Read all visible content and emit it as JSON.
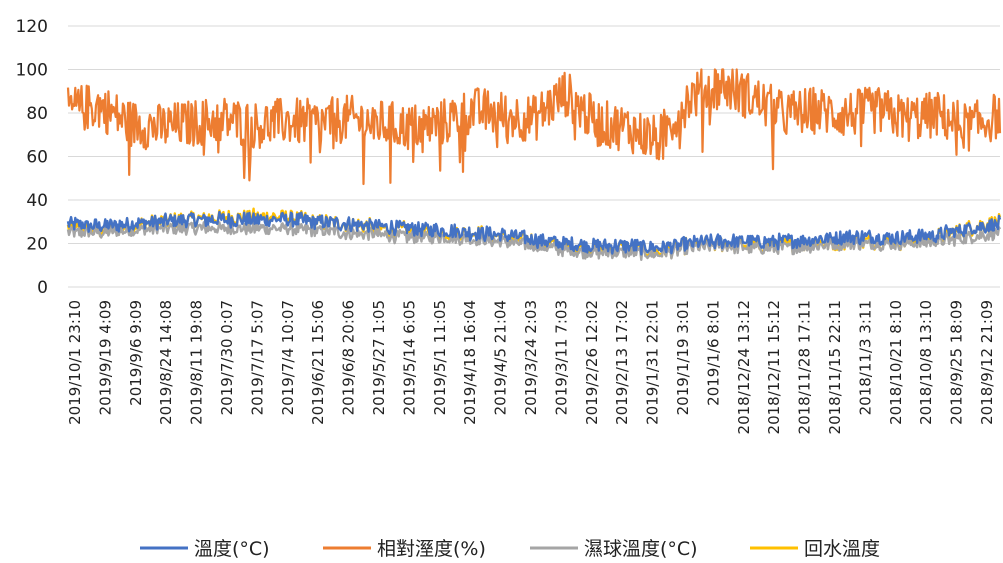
{
  "chart_data": {
    "type": "line",
    "title": "",
    "xlabel": "",
    "ylabel": "",
    "ylim": [
      0,
      120
    ],
    "yticks": [
      0,
      20,
      40,
      60,
      80,
      100,
      120
    ],
    "grid": "horizontal",
    "legend_position": "bottom",
    "x_order": "descending time (newest at left)",
    "x_tick_labels": [
      "2019/10/1 23:10",
      "2019/9/19 4:09",
      "2019/9/6 9:09",
      "2019/8/24 14:08",
      "2019/8/11 19:08",
      "2019/7/30 0:07",
      "2019/7/17 5:07",
      "2019/7/4 10:07",
      "2019/6/21 15:06",
      "2019/6/8 20:06",
      "2019/5/27 1:05",
      "2019/5/14 6:05",
      "2019/5/1 11:05",
      "2019/4/18 16:04",
      "2019/4/5 21:04",
      "2019/3/24 2:03",
      "2019/3/11 7:03",
      "2019/2/26 12:02",
      "2019/2/13 17:02",
      "2019/1/31 22:01",
      "2019/1/19 3:01",
      "2019/1/6 8:01",
      "2018/12/24 13:12",
      "2018/12/11 15:12",
      "2018/11/28 17:11",
      "2018/11/15 22:11",
      "2018/11/3 3:11",
      "2018/10/21 8:10",
      "2018/10/8 13:10",
      "2018/9/25 18:09",
      "2018/9/12 21:09"
    ],
    "series": [
      {
        "name": "溫度(°C)",
        "color": "#4472C4",
        "values": [
          29,
          28,
          29,
          30,
          31,
          31,
          31,
          31,
          30,
          29,
          28,
          27,
          26,
          25,
          24,
          22,
          20,
          19,
          19,
          18,
          20,
          21,
          21,
          21,
          22,
          23,
          23,
          23,
          24,
          27,
          29
        ]
      },
      {
        "name": "相對溼度(%)",
        "color": "#ED7D31",
        "values": [
          78,
          80,
          72,
          70,
          72,
          74,
          71,
          73,
          72,
          74,
          72,
          70,
          72,
          78,
          76,
          74,
          86,
          72,
          70,
          64,
          84,
          90,
          84,
          76,
          78,
          76,
          78,
          74,
          76,
          70,
          76
        ]
      },
      {
        "name": "濕球溫度(°C)",
        "color": "#A5A5A5",
        "values": [
          25,
          25,
          26,
          27,
          27,
          27,
          27,
          27,
          26,
          25,
          24,
          23,
          23,
          22,
          21,
          19,
          17,
          16,
          16,
          15,
          18,
          19,
          18,
          18,
          19,
          20,
          20,
          20,
          21,
          23,
          25
        ]
      },
      {
        "name": "回水溫度",
        "color": "#FFC000",
        "values": [
          27,
          26,
          28,
          30,
          31,
          32,
          32,
          32,
          30,
          29,
          27,
          26,
          25,
          25,
          23,
          21,
          19,
          18,
          18,
          16,
          19,
          20,
          19,
          19,
          20,
          21,
          21,
          21,
          23,
          27,
          30
        ]
      }
    ]
  }
}
